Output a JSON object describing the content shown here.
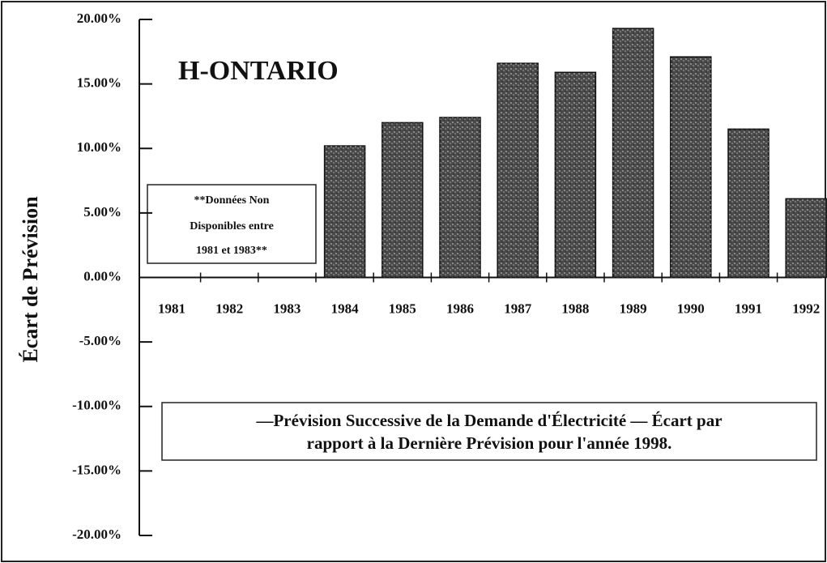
{
  "chart_data": {
    "type": "bar",
    "title": "H-ONTARIO",
    "y_axis_label": "Écart de Prévision",
    "note": [
      "**Données Non",
      "Disponibles entre",
      "1981 et 1983**"
    ],
    "caption": [
      "—Prévision Successive de la Demande d'Électricité — Écart par",
      "rapport à la Dernière Prévision pour l'année 1998."
    ],
    "categories": [
      "1981",
      "1982",
      "1983",
      "1984",
      "1985",
      "1986",
      "1987",
      "1988",
      "1989",
      "1990",
      "1991",
      "1992"
    ],
    "values": [
      null,
      null,
      null,
      10.2,
      12.0,
      12.4,
      16.6,
      15.9,
      19.3,
      17.1,
      11.5,
      6.1
    ],
    "color": "#4a4a4a",
    "ylim": [
      -20,
      20
    ],
    "yticks": [
      {
        "value": -20,
        "label": "-20.00%"
      },
      {
        "value": -15,
        "label": "-15.00%"
      },
      {
        "value": -10,
        "label": "-10.00%"
      },
      {
        "value": -5,
        "label": "-5.00%"
      },
      {
        "value": 0,
        "label": "0.00%"
      },
      {
        "value": 5,
        "label": "5.00%"
      },
      {
        "value": 10,
        "label": "10.00%"
      },
      {
        "value": 15,
        "label": "15.00%"
      },
      {
        "value": 20,
        "label": "20.00%"
      }
    ],
    "grid": false
  }
}
